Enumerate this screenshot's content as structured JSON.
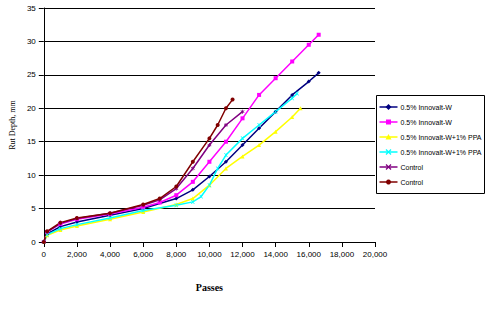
{
  "chart_data": {
    "type": "line",
    "x_label": "Passes",
    "y_label": "Rut Depth, mm",
    "xlim": [
      0,
      20000
    ],
    "xticks": [
      0,
      2000,
      4000,
      6000,
      8000,
      10000,
      12000,
      14000,
      16000,
      18000,
      20000
    ],
    "ylim": [
      0,
      35
    ],
    "yticks": [
      0,
      5,
      10,
      15,
      20,
      25,
      30,
      35
    ],
    "grid": true,
    "legend": "right",
    "series": [
      {
        "name": "0.5% Innovalt-W",
        "color": "#000080",
        "marker": "diamond",
        "x": [
          0,
          200,
          1000,
          2000,
          4000,
          6000,
          8000,
          9000,
          10000,
          11000,
          12000,
          13000,
          14000,
          15000,
          16000,
          16600
        ],
        "values": [
          0,
          1.2,
          2.3,
          3.0,
          4.0,
          5.0,
          6.5,
          7.8,
          9.8,
          12.0,
          14.5,
          17.0,
          19.5,
          22.0,
          24.0,
          25.3
        ]
      },
      {
        "name": "0.5% Innovalt-W",
        "color": "#ff00ff",
        "marker": "square",
        "x": [
          0,
          200,
          1000,
          2000,
          4000,
          6000,
          7000,
          8000,
          9000,
          10000,
          11000,
          12000,
          13000,
          14000,
          15000,
          16000,
          16600
        ],
        "values": [
          0,
          1.5,
          2.7,
          3.4,
          4.2,
          5.2,
          5.9,
          7.0,
          9.0,
          12.0,
          15.0,
          18.5,
          22.0,
          24.5,
          27.0,
          29.5,
          31.0
        ]
      },
      {
        "name": "0.5% Innovalt-W+1% PPA",
        "color": "#ffff00",
        "marker": "triangle",
        "x": [
          0,
          200,
          1000,
          2000,
          4000,
          6000,
          8000,
          9000,
          10000,
          11000,
          12000,
          13000,
          14000,
          15000,
          15500
        ],
        "values": [
          0,
          1.0,
          1.8,
          2.4,
          3.4,
          4.5,
          5.6,
          6.5,
          8.5,
          11.0,
          12.8,
          14.5,
          16.5,
          18.7,
          20.0
        ]
      },
      {
        "name": "0.5% Innovalt-W+1% PPA",
        "color": "#00ffff",
        "marker": "x",
        "x": [
          0,
          200,
          1000,
          2000,
          4000,
          6000,
          8000,
          9000,
          9500,
          10000,
          10500,
          11000,
          12000,
          13000,
          14000,
          15000,
          15300
        ],
        "values": [
          0,
          1.1,
          2.0,
          2.6,
          3.6,
          4.7,
          5.5,
          6.0,
          6.8,
          8.5,
          11.0,
          13.0,
          15.5,
          17.5,
          19.5,
          21.5,
          22.2
        ]
      },
      {
        "name": "Control",
        "color": "#800080",
        "marker": "asterisk",
        "x": [
          0,
          200,
          1000,
          2000,
          4000,
          6000,
          7000,
          8000,
          9000,
          10000,
          11000,
          12000
        ],
        "values": [
          0,
          1.5,
          2.8,
          3.5,
          4.3,
          5.5,
          6.3,
          8.0,
          11.0,
          14.5,
          17.5,
          19.5
        ]
      },
      {
        "name": "Control",
        "color": "#800000",
        "marker": "circle",
        "x": [
          0,
          200,
          1000,
          2000,
          4000,
          6000,
          7000,
          8000,
          9000,
          10000,
          10500,
          11000,
          11400
        ],
        "values": [
          0,
          1.6,
          2.9,
          3.6,
          4.3,
          5.6,
          6.5,
          8.3,
          12.0,
          15.5,
          17.5,
          20.0,
          21.3
        ]
      }
    ]
  }
}
